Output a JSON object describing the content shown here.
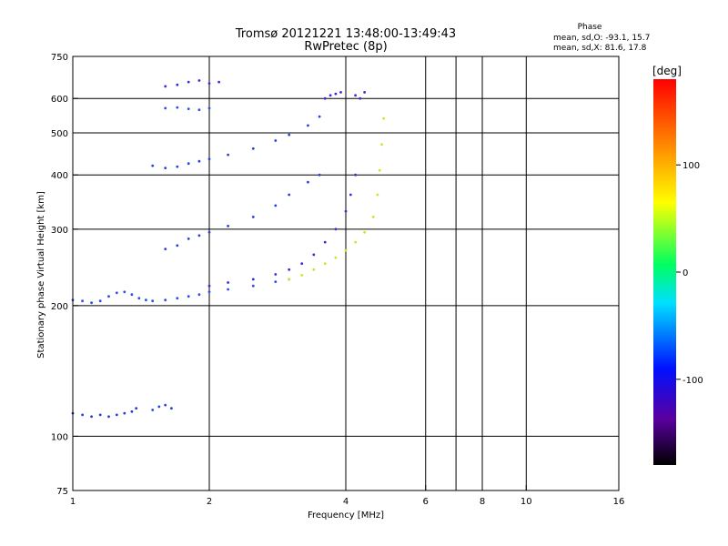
{
  "chart_data": {
    "type": "scatter",
    "title": "Tromsø 20121221 13:48:00-13:49:43",
    "subtitle": "RwPretec (8p)",
    "phase_stats": {
      "heading": "Phase",
      "line_o": "mean, sd,O: -93.1, 15.7",
      "line_x": "mean, sd,X:  81.6, 17.8"
    },
    "xlabel": "Frequency [MHz]",
    "ylabel": "Stationary phase Virtual Height [km]",
    "x_scale": "log",
    "y_scale": "log",
    "xlim": [
      1,
      16
    ],
    "ylim": [
      75,
      750
    ],
    "x_ticks": [
      1,
      2,
      4,
      6,
      8,
      10,
      16
    ],
    "x_tick_labels": [
      "1",
      "2",
      "4",
      "6",
      "8",
      "10",
      "16"
    ],
    "x_grid": [
      2,
      4,
      6,
      7,
      8,
      10
    ],
    "y_ticks": [
      75,
      100,
      200,
      300,
      400,
      500,
      600,
      750
    ],
    "y_tick_labels": [
      "75",
      "100",
      "200",
      "300",
      "400",
      "500",
      "600",
      "750"
    ],
    "y_grid": [
      100,
      200,
      300,
      400,
      500,
      600
    ],
    "grid": true,
    "colorbar": {
      "label": "[deg]",
      "range": [
        -180,
        180
      ],
      "ticks": [
        -100,
        0,
        100
      ],
      "tick_labels": [
        "-100",
        "0",
        "100"
      ]
    },
    "traces": [
      {
        "color": "#2a50e6",
        "phase_deg": -95,
        "points": [
          [
            1.0,
            206
          ],
          [
            1.05,
            205
          ],
          [
            1.1,
            203
          ],
          [
            1.15,
            205
          ],
          [
            1.2,
            210
          ],
          [
            1.25,
            214
          ],
          [
            1.3,
            215
          ],
          [
            1.35,
            212
          ],
          [
            1.4,
            208
          ],
          [
            1.45,
            206
          ],
          [
            1.5,
            205
          ],
          [
            1.6,
            206
          ],
          [
            1.7,
            208
          ],
          [
            1.8,
            210
          ],
          [
            1.9,
            212
          ],
          [
            2.0,
            215
          ],
          [
            2.2,
            218
          ],
          [
            2.5,
            222
          ],
          [
            2.8,
            227
          ],
          [
            3.0,
            230
          ]
        ]
      },
      {
        "color": "#2a3ad6",
        "phase_deg": -110,
        "points": [
          [
            1.0,
            113
          ],
          [
            1.05,
            112
          ],
          [
            1.1,
            111
          ],
          [
            1.15,
            112
          ],
          [
            1.2,
            111
          ],
          [
            1.25,
            112
          ],
          [
            1.3,
            113
          ],
          [
            1.35,
            114
          ],
          [
            1.38,
            116
          ]
        ]
      },
      {
        "color": "#2a40d6",
        "phase_deg": -105,
        "points": [
          [
            1.5,
            115
          ],
          [
            1.55,
            117
          ],
          [
            1.6,
            118
          ],
          [
            1.65,
            116
          ]
        ]
      },
      {
        "color": "#2844d6",
        "phase_deg": -105,
        "points": [
          [
            1.5,
            420
          ],
          [
            1.6,
            415
          ],
          [
            1.7,
            418
          ],
          [
            1.8,
            425
          ],
          [
            1.9,
            430
          ],
          [
            2.0,
            435
          ],
          [
            2.2,
            445
          ],
          [
            2.5,
            460
          ],
          [
            2.8,
            480
          ],
          [
            3.0,
            495
          ],
          [
            3.3,
            520
          ],
          [
            3.5,
            545
          ]
        ]
      },
      {
        "color": "#2a40d6",
        "phase_deg": -105,
        "points": [
          [
            1.6,
            270
          ],
          [
            1.7,
            275
          ],
          [
            1.8,
            285
          ],
          [
            1.9,
            290
          ],
          [
            2.0,
            295
          ],
          [
            2.2,
            305
          ],
          [
            2.5,
            320
          ],
          [
            2.8,
            340
          ],
          [
            3.0,
            360
          ],
          [
            3.3,
            385
          ],
          [
            3.5,
            400
          ]
        ]
      },
      {
        "color": "#3a2ad6",
        "phase_deg": -120,
        "points": [
          [
            2.0,
            222
          ],
          [
            2.2,
            226
          ],
          [
            2.5,
            230
          ],
          [
            2.8,
            236
          ],
          [
            3.0,
            242
          ],
          [
            3.2,
            250
          ],
          [
            3.4,
            262
          ],
          [
            3.6,
            280
          ],
          [
            3.8,
            300
          ],
          [
            4.0,
            330
          ],
          [
            4.1,
            360
          ],
          [
            4.2,
            400
          ]
        ]
      },
      {
        "color": "#c8e62a",
        "phase_deg": 90,
        "points": [
          [
            3.0,
            230
          ],
          [
            3.2,
            235
          ],
          [
            3.4,
            242
          ],
          [
            3.6,
            250
          ],
          [
            3.8,
            258
          ],
          [
            4.0,
            268
          ],
          [
            4.2,
            280
          ],
          [
            4.4,
            295
          ],
          [
            4.6,
            320
          ],
          [
            4.7,
            360
          ],
          [
            4.75,
            410
          ],
          [
            4.8,
            470
          ],
          [
            4.85,
            540
          ]
        ]
      },
      {
        "color": "#3030d8",
        "phase_deg": -115,
        "points": [
          [
            1.6,
            640
          ],
          [
            1.7,
            645
          ],
          [
            1.8,
            655
          ],
          [
            1.9,
            660
          ],
          [
            2.0,
            650
          ],
          [
            2.1,
            655
          ]
        ]
      },
      {
        "color": "#2a50e6",
        "phase_deg": -100,
        "points": [
          [
            1.6,
            570
          ],
          [
            1.7,
            572
          ],
          [
            1.8,
            568
          ],
          [
            1.9,
            565
          ],
          [
            2.0,
            570
          ]
        ]
      },
      {
        "color": "#3a2ad6",
        "phase_deg": -118,
        "points": [
          [
            3.6,
            600
          ],
          [
            3.7,
            610
          ],
          [
            3.8,
            615
          ],
          [
            3.9,
            620
          ],
          [
            4.2,
            610
          ],
          [
            4.3,
            600
          ],
          [
            4.4,
            620
          ]
        ]
      }
    ]
  }
}
